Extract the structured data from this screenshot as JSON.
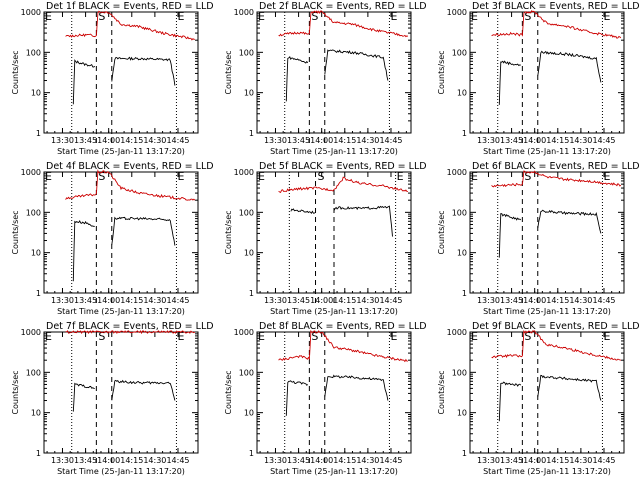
{
  "colors": {
    "events": "#000000",
    "lld": "#cc0000",
    "axes": "#000000",
    "background": "#ffffff"
  },
  "chart_data": [
    {
      "type": "line",
      "title": "Det 1f BLACK = Events, RED = LLD",
      "xlabel": "Start Time (25-Jan-11 13:17:20)",
      "ylabel": "Counts/sec",
      "yscale": "log",
      "ylim": [
        1,
        1000
      ],
      "xticks": [
        "13:30",
        "13:45",
        "14:00",
        "14:15",
        "14:30",
        "14:45"
      ],
      "yticks": [
        "1",
        "10",
        "100",
        "1000"
      ],
      "markers": [
        "E",
        "S",
        "E"
      ],
      "series": [
        {
          "name": "Events",
          "segments": [
            {
              "x": [
                "13:37",
                "13:38",
                "13:45",
                "13:51"
              ],
              "y": [
                5,
                60,
                50,
                45
              ]
            },
            {
              "x": [
                "14:02",
                "14:04",
                "14:20",
                "14:40",
                "14:43"
              ],
              "y": [
                20,
                70,
                70,
                65,
                15
              ]
            }
          ]
        },
        {
          "name": "LLD",
          "segments": [
            {
              "x": [
                "13:32",
                "13:45",
                "13:52",
                "13:53",
                "14:00",
                "14:08",
                "14:20",
                "14:35",
                "14:56"
              ],
              "y": [
                250,
                270,
                260,
                1000,
                1000,
                500,
                430,
                300,
                210
              ]
            }
          ]
        }
      ]
    },
    {
      "type": "line",
      "title": "Det 2f BLACK = Events, RED = LLD",
      "xlabel": "Start Time (25-Jan-11 13:17:20)",
      "ylabel": "Counts/sec",
      "yscale": "log",
      "ylim": [
        1,
        1000
      ],
      "xticks": [
        "13:30",
        "13:45",
        "14:00",
        "14:15",
        "14:30",
        "14:45"
      ],
      "yticks": [
        "1",
        "10",
        "100",
        "1000"
      ],
      "markers": [
        "E",
        "S",
        "E"
      ],
      "series": [
        {
          "name": "Events",
          "segments": [
            {
              "x": [
                "13:37",
                "13:38",
                "13:45",
                "13:51"
              ],
              "y": [
                6,
                75,
                65,
                55
              ]
            },
            {
              "x": [
                "14:02",
                "14:04",
                "14:20",
                "14:40",
                "14:43"
              ],
              "y": [
                30,
                110,
                100,
                75,
                20
              ]
            }
          ]
        },
        {
          "name": "LLD",
          "segments": [
            {
              "x": [
                "13:32",
                "13:45",
                "13:52",
                "13:53",
                "14:00",
                "14:08",
                "14:20",
                "14:35",
                "14:56"
              ],
              "y": [
                270,
                310,
                280,
                1000,
                1000,
                550,
                500,
                350,
                250
              ]
            }
          ]
        }
      ]
    },
    {
      "type": "line",
      "title": "Det 3f BLACK = Events, RED = LLD",
      "xlabel": "Start Time (25-Jan-11 13:17:20)",
      "ylabel": "Counts/sec",
      "yscale": "log",
      "ylim": [
        1,
        1000
      ],
      "xticks": [
        "13:30",
        "13:45",
        "14:00",
        "14:15",
        "14:30",
        "14:45"
      ],
      "yticks": [
        "1",
        "10",
        "100",
        "1000"
      ],
      "markers": [
        "E",
        "S",
        "E"
      ],
      "series": [
        {
          "name": "Events",
          "segments": [
            {
              "x": [
                "13:37",
                "13:38",
                "13:45",
                "13:51"
              ],
              "y": [
                5,
                60,
                52,
                48
              ]
            },
            {
              "x": [
                "14:02",
                "14:04",
                "14:20",
                "14:40",
                "14:43"
              ],
              "y": [
                25,
                100,
                90,
                70,
                18
              ]
            }
          ]
        },
        {
          "name": "LLD",
          "segments": [
            {
              "x": [
                "13:32",
                "13:45",
                "13:52",
                "13:53",
                "14:00",
                "14:08",
                "14:20",
                "14:35",
                "14:56"
              ],
              "y": [
                270,
                290,
                270,
                1000,
                1000,
                520,
                450,
                320,
                230
              ]
            }
          ]
        }
      ]
    },
    {
      "type": "line",
      "title": "Det 4f BLACK = Events, RED = LLD",
      "xlabel": "Start Time (25-Jan-11 13:17:20)",
      "ylabel": "Counts/sec",
      "yscale": "log",
      "ylim": [
        1,
        1000
      ],
      "xticks": [
        "13:30",
        "13:45",
        "14:00",
        "14:15",
        "14:30",
        "14:45"
      ],
      "yticks": [
        "1",
        "10",
        "100",
        "1000"
      ],
      "markers": [
        "E",
        "S",
        "E"
      ],
      "series": [
        {
          "name": "Events",
          "segments": [
            {
              "x": [
                "13:37",
                "13:38",
                "13:45",
                "13:51"
              ],
              "y": [
                2,
                60,
                55,
                45
              ]
            },
            {
              "x": [
                "14:02",
                "14:04",
                "14:20",
                "14:40",
                "14:43"
              ],
              "y": [
                15,
                70,
                70,
                65,
                15
              ]
            }
          ]
        },
        {
          "name": "LLD",
          "segments": [
            {
              "x": [
                "13:32",
                "13:45",
                "13:52",
                "13:53",
                "14:00",
                "14:08",
                "14:20",
                "14:35",
                "14:56"
              ],
              "y": [
                220,
                260,
                280,
                1000,
                1000,
                400,
                300,
                250,
                200
              ]
            }
          ]
        }
      ]
    },
    {
      "type": "line",
      "title": "Det 5f BLACK = Events, RED = LLD",
      "xlabel": "Start Time (25-Jan-11 13:17:20)",
      "ylabel": "Counts/sec",
      "yscale": "log",
      "ylim": [
        1,
        1000
      ],
      "xticks": [
        "13:30",
        "13:45",
        "14:00",
        "14:15",
        "14:30",
        "14:45"
      ],
      "yticks": [
        "1",
        "10",
        "100",
        "1000"
      ],
      "markers": [
        "E",
        "S",
        "E"
      ],
      "series": [
        {
          "name": "Events",
          "segments": [
            {
              "x": [
                "13:40",
                "13:41",
                "13:50",
                "13:56"
              ],
              "y": [
                110,
                115,
                105,
                100
              ]
            },
            {
              "x": [
                "14:08",
                "14:10",
                "14:25",
                "14:44",
                "14:46"
              ],
              "y": [
                110,
                130,
                125,
                135,
                25
              ]
            }
          ]
        },
        {
          "name": "LLD",
          "segments": [
            {
              "x": [
                "13:32",
                "13:45",
                "13:55",
                "14:08",
                "14:14",
                "14:25",
                "14:40",
                "14:56"
              ],
              "y": [
                330,
                380,
                400,
                360,
                700,
                520,
                450,
                330
              ]
            }
          ]
        }
      ]
    },
    {
      "type": "line",
      "title": "Det 6f BLACK = Events, RED = LLD",
      "xlabel": "Start Time (25-Jan-11 13:17:20)",
      "ylabel": "Counts/sec",
      "yscale": "log",
      "ylim": [
        1,
        1000
      ],
      "xticks": [
        "13:30",
        "13:45",
        "14:00",
        "14:15",
        "14:30",
        "14:45"
      ],
      "yticks": [
        "1",
        "10",
        "100",
        "1000"
      ],
      "markers": [
        "E",
        "S",
        "E"
      ],
      "series": [
        {
          "name": "Events",
          "segments": [
            {
              "x": [
                "13:37",
                "13:38",
                "13:45",
                "13:51"
              ],
              "y": [
                8,
                90,
                75,
                65
              ]
            },
            {
              "x": [
                "14:02",
                "14:04",
                "14:20",
                "14:40",
                "14:43"
              ],
              "y": [
                40,
                110,
                95,
                90,
                30
              ]
            }
          ]
        },
        {
          "name": "LLD",
          "segments": [
            {
              "x": [
                "13:32",
                "13:45",
                "13:52",
                "13:53",
                "14:00",
                "14:08",
                "14:20",
                "14:35",
                "14:56"
              ],
              "y": [
                450,
                480,
                500,
                1000,
                1000,
                750,
                650,
                600,
                470
              ]
            }
          ]
        }
      ]
    },
    {
      "type": "line",
      "title": "Det 7f BLACK = Events, RED = LLD",
      "xlabel": "Start Time (25-Jan-11 13:17:20)",
      "ylabel": "Counts/sec",
      "yscale": "log",
      "ylim": [
        1,
        1000
      ],
      "xticks": [
        "13:30",
        "13:45",
        "14:00",
        "14:15",
        "14:30",
        "14:45"
      ],
      "yticks": [
        "1",
        "10",
        "100",
        "1000"
      ],
      "markers": [
        "E",
        "S",
        "E"
      ],
      "series": [
        {
          "name": "Events",
          "segments": [
            {
              "x": [
                "13:37",
                "13:38",
                "13:45",
                "13:51"
              ],
              "y": [
                10,
                50,
                45,
                40
              ]
            },
            {
              "x": [
                "14:02",
                "14:04",
                "14:20",
                "14:40",
                "14:43"
              ],
              "y": [
                20,
                60,
                55,
                55,
                20
              ]
            }
          ]
        },
        {
          "name": "LLD",
          "segments": [
            {
              "x": [
                "13:32",
                "13:45",
                "13:52",
                "13:53",
                "14:00",
                "14:08",
                "14:20",
                "14:35",
                "14:56"
              ],
              "y": [
                1000,
                1000,
                1000,
                1000,
                1000,
                1000,
                1000,
                1000,
                1000
              ]
            }
          ]
        }
      ]
    },
    {
      "type": "line",
      "title": "Det 8f BLACK = Events, RED = LLD",
      "xlabel": "Start Time (25-Jan-11 13:17:20)",
      "ylabel": "Counts/sec",
      "yscale": "log",
      "ylim": [
        1,
        1000
      ],
      "xticks": [
        "13:30",
        "13:45",
        "14:00",
        "14:15",
        "14:30",
        "14:45"
      ],
      "yticks": [
        "1",
        "10",
        "100",
        "1000"
      ],
      "markers": [
        "E",
        "S",
        "E"
      ],
      "series": [
        {
          "name": "Events",
          "segments": [
            {
              "x": [
                "13:37",
                "13:38",
                "13:45",
                "13:51"
              ],
              "y": [
                8,
                60,
                55,
                50
              ]
            },
            {
              "x": [
                "14:02",
                "14:04",
                "14:20",
                "14:40",
                "14:43"
              ],
              "y": [
                25,
                80,
                75,
                65,
                20
              ]
            }
          ]
        },
        {
          "name": "LLD",
          "segments": [
            {
              "x": [
                "13:32",
                "13:45",
                "13:52",
                "13:53",
                "14:00",
                "14:08",
                "14:20",
                "14:35",
                "14:56"
              ],
              "y": [
                200,
                250,
                220,
                1000,
                1000,
                420,
                350,
                260,
                190
              ]
            }
          ]
        }
      ]
    },
    {
      "type": "line",
      "title": "Det 9f BLACK = Events, RED = LLD",
      "xlabel": "Start Time (25-Jan-11 13:17:20)",
      "ylabel": "Counts/sec",
      "yscale": "log",
      "ylim": [
        1,
        1000
      ],
      "xticks": [
        "13:30",
        "13:45",
        "14:00",
        "14:15",
        "14:30",
        "14:45"
      ],
      "yticks": [
        "1",
        "10",
        "100",
        "1000"
      ],
      "markers": [
        "E",
        "S",
        "E"
      ],
      "series": [
        {
          "name": "Events",
          "segments": [
            {
              "x": [
                "13:37",
                "13:38",
                "13:45",
                "13:51"
              ],
              "y": [
                6,
                55,
                50,
                48
              ]
            },
            {
              "x": [
                "14:02",
                "14:04",
                "14:20",
                "14:40",
                "14:43"
              ],
              "y": [
                25,
                80,
                70,
                60,
                20
              ]
            }
          ]
        },
        {
          "name": "LLD",
          "segments": [
            {
              "x": [
                "13:32",
                "13:45",
                "13:52",
                "13:53",
                "14:00",
                "14:08",
                "14:20",
                "14:35",
                "14:56"
              ],
              "y": [
                240,
                260,
                250,
                1000,
                1000,
                480,
                400,
                290,
                200
              ]
            }
          ]
        }
      ]
    }
  ]
}
